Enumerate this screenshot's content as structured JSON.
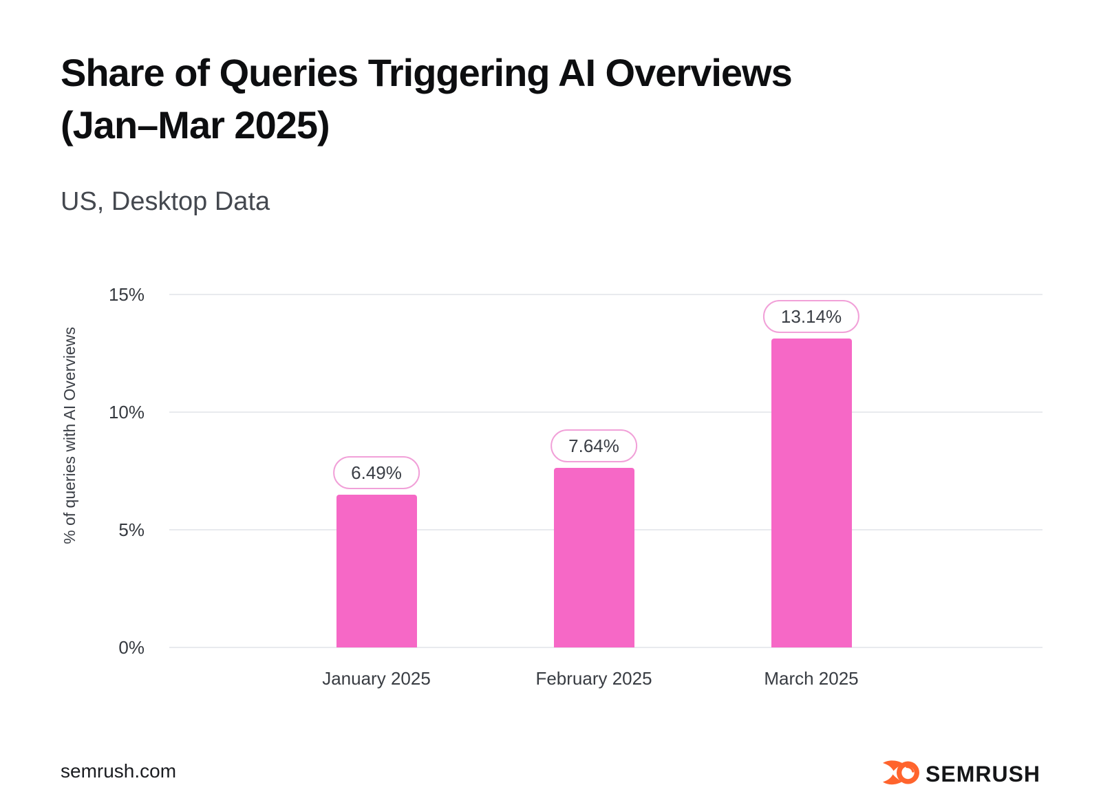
{
  "header": {
    "title_line1": "Share of Queries Triggering AI Overviews",
    "title_line2": "(Jan–Mar 2025)",
    "subtitle": "US, Desktop Data"
  },
  "footer": {
    "site": "semrush.com",
    "logo_text": "SEMRUSH",
    "logo_orange": "#ff642d"
  },
  "chart_data": {
    "type": "bar",
    "title": "Share of Queries Triggering AI Overviews (Jan–Mar 2025)",
    "subtitle": "US, Desktop Data",
    "categories": [
      "January 2025",
      "February 2025",
      "March 2025"
    ],
    "values": [
      6.49,
      7.64,
      13.14
    ],
    "labels": [
      "6.49%",
      "7.64%",
      "13.14%"
    ],
    "xlabel": "",
    "ylabel": "% of queries with AI Overviews",
    "ylim": [
      0,
      15
    ],
    "yticks": [
      {
        "label": "0%",
        "value": 0
      },
      {
        "label": "5%",
        "value": 5
      },
      {
        "label": "10%",
        "value": 10
      },
      {
        "label": "15%",
        "value": 15
      }
    ],
    "grid": true,
    "legend": false,
    "bar_color": "#f668c6",
    "pill_bg": "#ffffff",
    "pill_border": "#f1a0d8",
    "pill_text_color": "#3a3e45"
  }
}
